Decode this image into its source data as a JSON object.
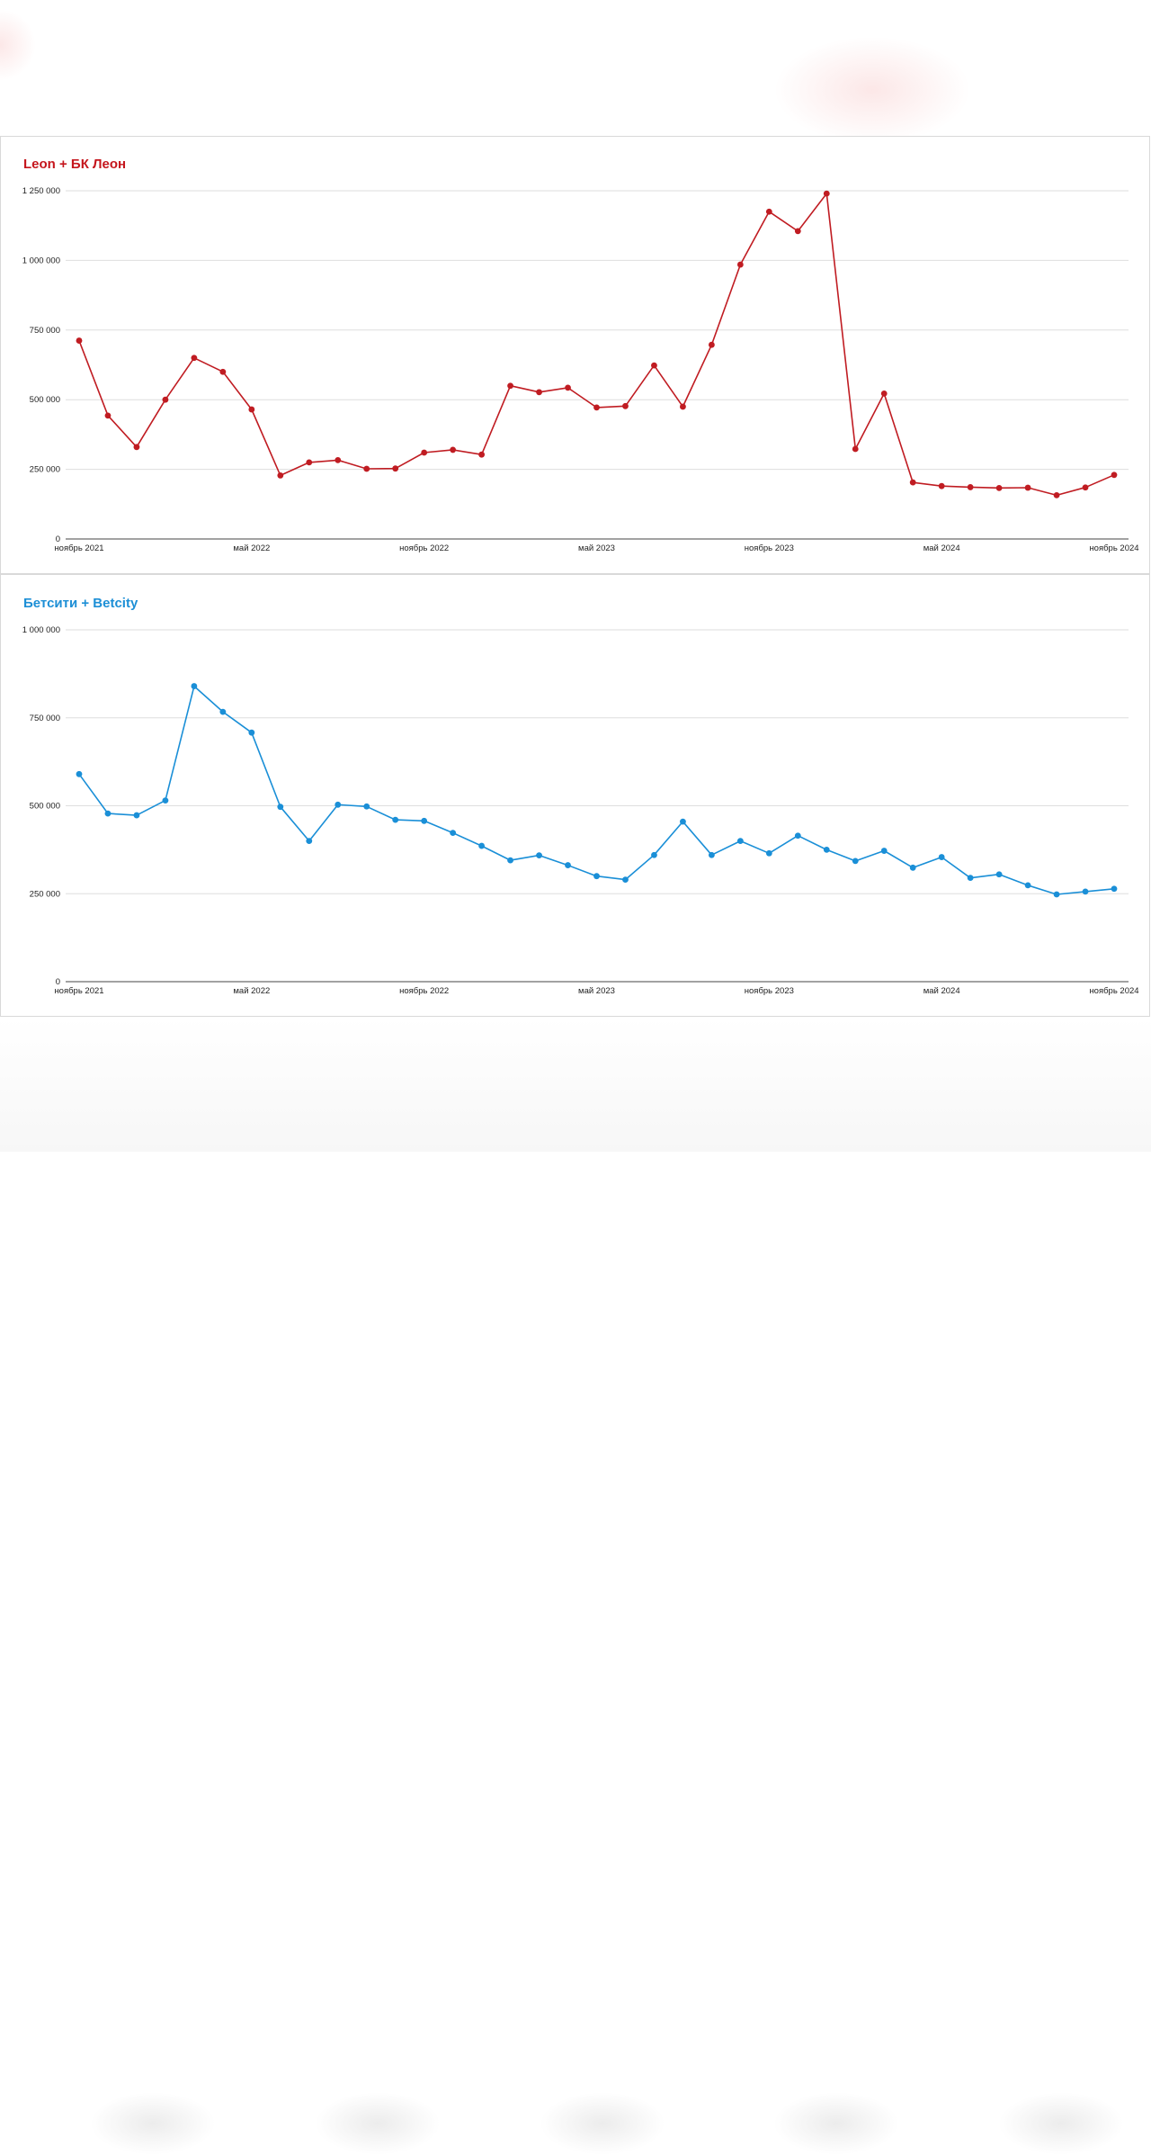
{
  "chart_data": [
    {
      "type": "line",
      "title": "Leon + БК Леон",
      "title_color": "#c5161d",
      "line_color": "#c01c22",
      "xlabel": "",
      "ylabel": "",
      "ylim": [
        0,
        1250000
      ],
      "y_ticks": [
        {
          "value": 0,
          "label": "0"
        },
        {
          "value": 250000,
          "label": "250 000"
        },
        {
          "value": 500000,
          "label": "500 000"
        },
        {
          "value": 750000,
          "label": "750 000"
        },
        {
          "value": 1000000,
          "label": "1 000 000"
        },
        {
          "value": 1250000,
          "label": "1 250 000"
        }
      ],
      "x_ticks": [
        {
          "index": 0,
          "label": "ноябрь 2021"
        },
        {
          "index": 6,
          "label": "май 2022"
        },
        {
          "index": 12,
          "label": "ноябрь 2022"
        },
        {
          "index": 18,
          "label": "май 2023"
        },
        {
          "index": 24,
          "label": "ноябрь 2023"
        },
        {
          "index": 30,
          "label": "май 2024"
        },
        {
          "index": 36,
          "label": "ноябрь 2024"
        }
      ],
      "x": [
        "2021-11",
        "2021-12",
        "2022-01",
        "2022-02",
        "2022-03",
        "2022-04",
        "2022-05",
        "2022-06",
        "2022-07",
        "2022-08",
        "2022-09",
        "2022-10",
        "2022-11",
        "2022-12",
        "2023-01",
        "2023-02",
        "2023-03",
        "2023-04",
        "2023-05",
        "2023-06",
        "2023-07",
        "2023-08",
        "2023-09",
        "2023-10",
        "2023-11",
        "2023-12",
        "2024-01",
        "2024-02",
        "2024-03",
        "2024-04",
        "2024-05",
        "2024-06",
        "2024-07",
        "2024-08",
        "2024-09",
        "2024-10",
        "2024-11"
      ],
      "series": [
        {
          "values": [
            712000,
            443000,
            330000,
            500000,
            650000,
            600000,
            465000,
            228000,
            275000,
            283000,
            252000,
            253000,
            310000,
            320000,
            303000,
            550000,
            527000,
            543000,
            472000,
            477000,
            623000,
            475000,
            697000,
            985000,
            1175000,
            1105000,
            1240000,
            323000,
            522000,
            203000,
            190000,
            186000,
            183000,
            184000,
            157000,
            185000,
            230000
          ]
        }
      ],
      "grid": true,
      "legend": "none"
    },
    {
      "type": "line",
      "title": "Бетсити + Betcity",
      "title_color": "#1d8fd6",
      "line_color": "#1a8fd7",
      "xlabel": "",
      "ylabel": "",
      "ylim": [
        0,
        1000000
      ],
      "y_ticks": [
        {
          "value": 0,
          "label": "0"
        },
        {
          "value": 250000,
          "label": "250 000"
        },
        {
          "value": 500000,
          "label": "500 000"
        },
        {
          "value": 750000,
          "label": "750 000"
        },
        {
          "value": 1000000,
          "label": "1 000 000"
        }
      ],
      "x_ticks": [
        {
          "index": 0,
          "label": "ноябрь 2021"
        },
        {
          "index": 6,
          "label": "май 2022"
        },
        {
          "index": 12,
          "label": "ноябрь 2022"
        },
        {
          "index": 18,
          "label": "май 2023"
        },
        {
          "index": 24,
          "label": "ноябрь 2023"
        },
        {
          "index": 30,
          "label": "май 2024"
        },
        {
          "index": 36,
          "label": "ноябрь 2024"
        }
      ],
      "x": [
        "2021-11",
        "2021-12",
        "2022-01",
        "2022-02",
        "2022-03",
        "2022-04",
        "2022-05",
        "2022-06",
        "2022-07",
        "2022-08",
        "2022-09",
        "2022-10",
        "2022-11",
        "2022-12",
        "2023-01",
        "2023-02",
        "2023-03",
        "2023-04",
        "2023-05",
        "2023-06",
        "2023-07",
        "2023-08",
        "2023-09",
        "2023-10",
        "2023-11",
        "2023-12",
        "2024-01",
        "2024-02",
        "2024-03",
        "2024-04",
        "2024-05",
        "2024-06",
        "2024-07",
        "2024-08",
        "2024-09",
        "2024-10",
        "2024-11"
      ],
      "series": [
        {
          "values": [
            590000,
            478000,
            473000,
            515000,
            840000,
            767000,
            708000,
            497000,
            400000,
            503000,
            498000,
            460000,
            457000,
            423000,
            386000,
            345000,
            359000,
            331000,
            300000,
            290000,
            360000,
            455000,
            360000,
            400000,
            365000,
            415000,
            375000,
            343000,
            372000,
            324000,
            354000,
            295000,
            305000,
            274000,
            248000,
            256000,
            264000
          ]
        }
      ],
      "grid": true,
      "legend": "none"
    }
  ]
}
